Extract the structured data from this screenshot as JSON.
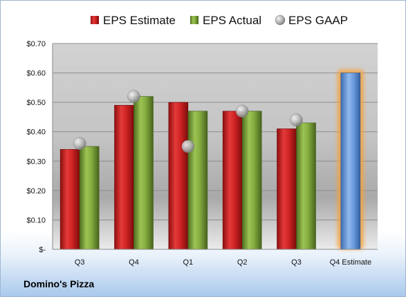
{
  "company": "Domino's Pizza",
  "colors": {
    "estimate": "#cc1f1f",
    "actual": "#7fa63a",
    "gaap": "#b5b5b5",
    "forecast": "#5b8fd6",
    "forecast_glow": "#f5a23c"
  },
  "chart_data": {
    "type": "bar",
    "title": "",
    "xlabel": "",
    "ylabel": "",
    "categories": [
      "Q3",
      "Q4",
      "Q1",
      "Q2",
      "Q3",
      "Q4 Estimate"
    ],
    "series": [
      {
        "name": "EPS Estimate",
        "values": [
          0.34,
          0.49,
          0.5,
          0.47,
          0.41,
          null
        ]
      },
      {
        "name": "EPS Actual",
        "values": [
          0.35,
          0.52,
          0.47,
          0.47,
          0.43,
          null
        ]
      },
      {
        "name": "EPS GAAP",
        "marker": "circle",
        "values": [
          0.36,
          0.52,
          0.35,
          0.47,
          0.44,
          null
        ]
      }
    ],
    "forecast": {
      "category": "Q4 Estimate",
      "value": 0.6
    },
    "ylim": [
      0,
      0.7
    ],
    "yticks": [
      0,
      0.1,
      0.2,
      0.3,
      0.4,
      0.5,
      0.6,
      0.7
    ],
    "ytick_labels": [
      "$-",
      "$0.10",
      "$0.20",
      "$0.30",
      "$0.40",
      "$0.50",
      "$0.60",
      "$0.70"
    ],
    "grid": true,
    "legend_position": "top"
  }
}
